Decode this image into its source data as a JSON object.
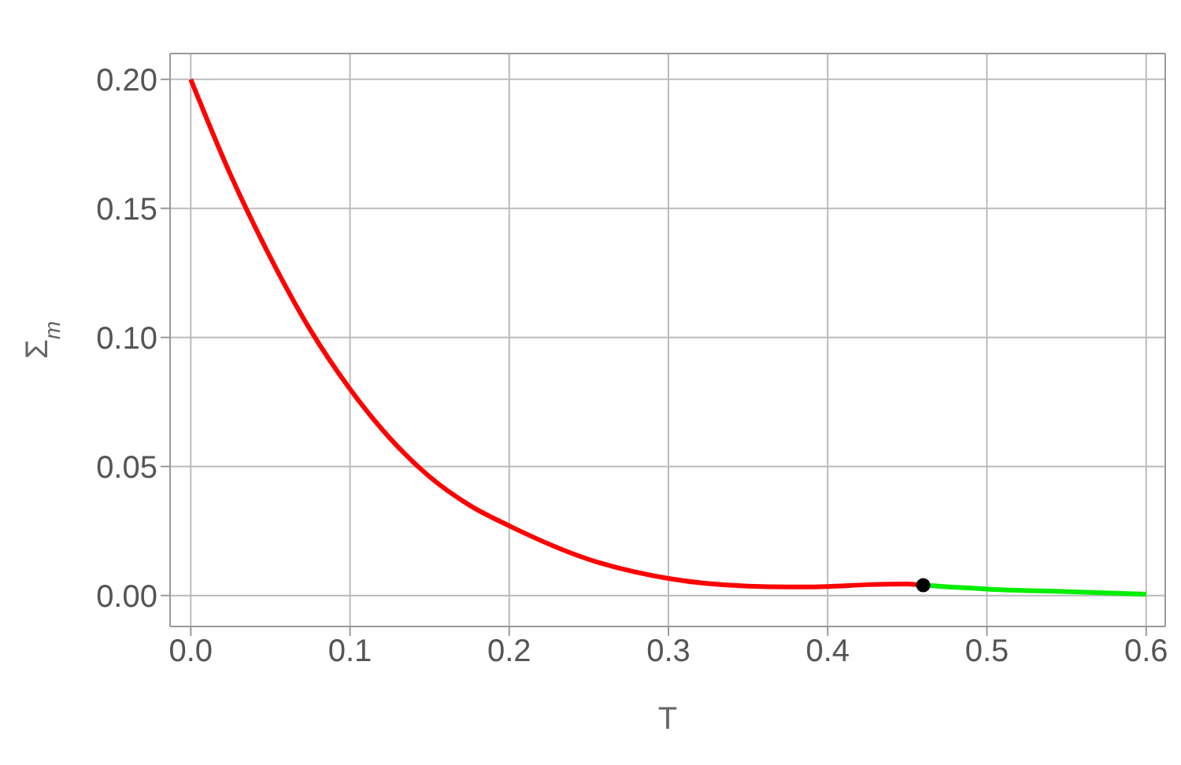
{
  "chart_data": {
    "type": "line",
    "xlabel": "T",
    "ylabel": "Σ$_{m}$",
    "xlim": [
      -0.013,
      0.612
    ],
    "ylim": [
      -0.012,
      0.21
    ],
    "xticks": [
      {
        "value": 0,
        "label": "0.0"
      },
      {
        "value": 0.1,
        "label": "0.1"
      },
      {
        "value": 0.2,
        "label": "0.2"
      },
      {
        "value": 0.3,
        "label": "0.3"
      },
      {
        "value": 0.4,
        "label": "0.4"
      },
      {
        "value": 0.5,
        "label": "0.5"
      },
      {
        "value": 0.6,
        "label": "0.6"
      }
    ],
    "yticks": [
      {
        "value": 0,
        "label": "0.00"
      },
      {
        "value": 0.05,
        "label": "0.05"
      },
      {
        "value": 0.1,
        "label": "0.10"
      },
      {
        "value": 0.15,
        "label": "0.15"
      },
      {
        "value": 0.2,
        "label": "0.20"
      }
    ],
    "grid": true,
    "marker": "none",
    "series": [
      {
        "color": "#ff0000",
        "x": [
          0,
          0.025,
          0.05,
          0.075,
          0.1,
          0.125,
          0.15,
          0.175,
          0.2,
          0.25,
          0.3,
          0.35,
          0.375,
          0.4,
          0.425,
          0.45,
          0.46
        ],
        "values": [
          0.2,
          0.163,
          0.131,
          0.103,
          0.08,
          0.061,
          0.046,
          0.035,
          0.027,
          0.014,
          0.0066,
          0.0036,
          0.0033,
          0.0035,
          0.0042,
          0.0045,
          0.004
        ]
      },
      {
        "color": "#00ee00",
        "x": [
          0.46,
          0.5,
          0.55,
          0.6
        ],
        "values": [
          0.004,
          0.0025,
          0.0015,
          0.0005
        ]
      },
      {
        "type": "scatter",
        "color": "#000000",
        "marker": "circle",
        "x": [
          0.46
        ],
        "values": [
          0.004
        ]
      }
    ]
  }
}
